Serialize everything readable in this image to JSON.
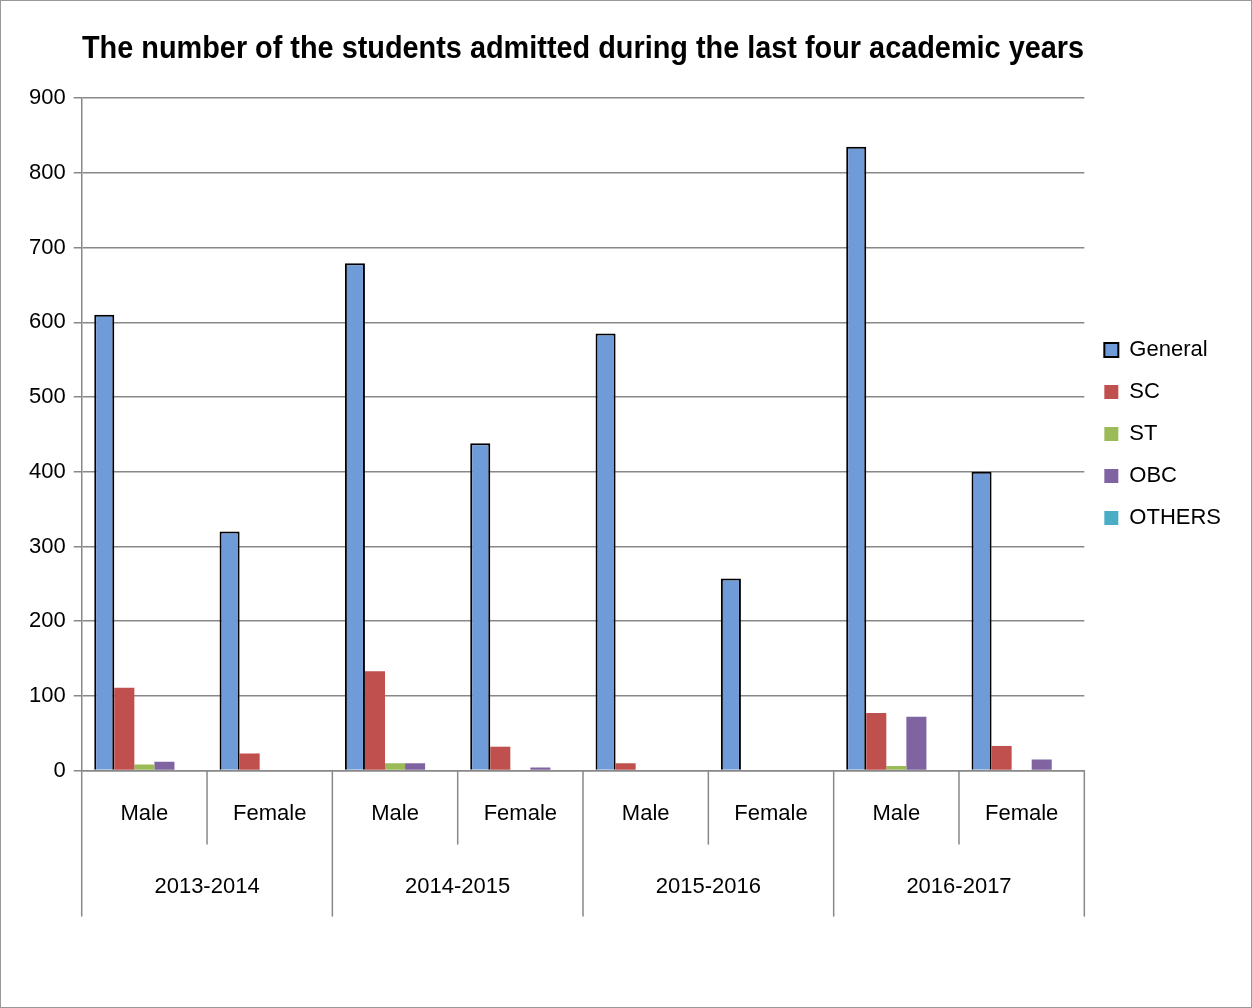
{
  "chart_data": {
    "type": "bar",
    "title": "The number of the students admitted during the last four academic years",
    "categories": [
      "Male",
      "Female",
      "Male",
      "Female",
      "Male",
      "Female",
      "Male",
      "Female"
    ],
    "series": [
      {
        "name": "General",
        "color": "#6f9bd8",
        "values": [
          610,
          320,
          679,
          438,
          585,
          257,
          835,
          400
        ]
      },
      {
        "name": "SC",
        "color": "#c0504d",
        "values": [
          111,
          23,
          133,
          32,
          10,
          0,
          77,
          33
        ]
      },
      {
        "name": "ST",
        "color": "#9bbb59",
        "values": [
          8,
          0,
          10,
          0,
          0,
          0,
          6,
          0
        ]
      },
      {
        "name": "OBC",
        "color": "#8064a2",
        "values": [
          12,
          1,
          10,
          4,
          0,
          0,
          72,
          15
        ]
      },
      {
        "name": "OTHERS",
        "color": "#4bacc6",
        "values": [
          0,
          0,
          0,
          0,
          0,
          0,
          0,
          0
        ]
      }
    ],
    "annotations": [
      "2013-2014",
      "2014-2015",
      "2015-2016",
      "2016-2017"
    ],
    "ylim": [
      0,
      900
    ],
    "yticks": [
      0,
      100,
      200,
      300,
      400,
      500,
      600,
      700,
      800,
      900
    ],
    "grid": "y",
    "legend": "right"
  }
}
